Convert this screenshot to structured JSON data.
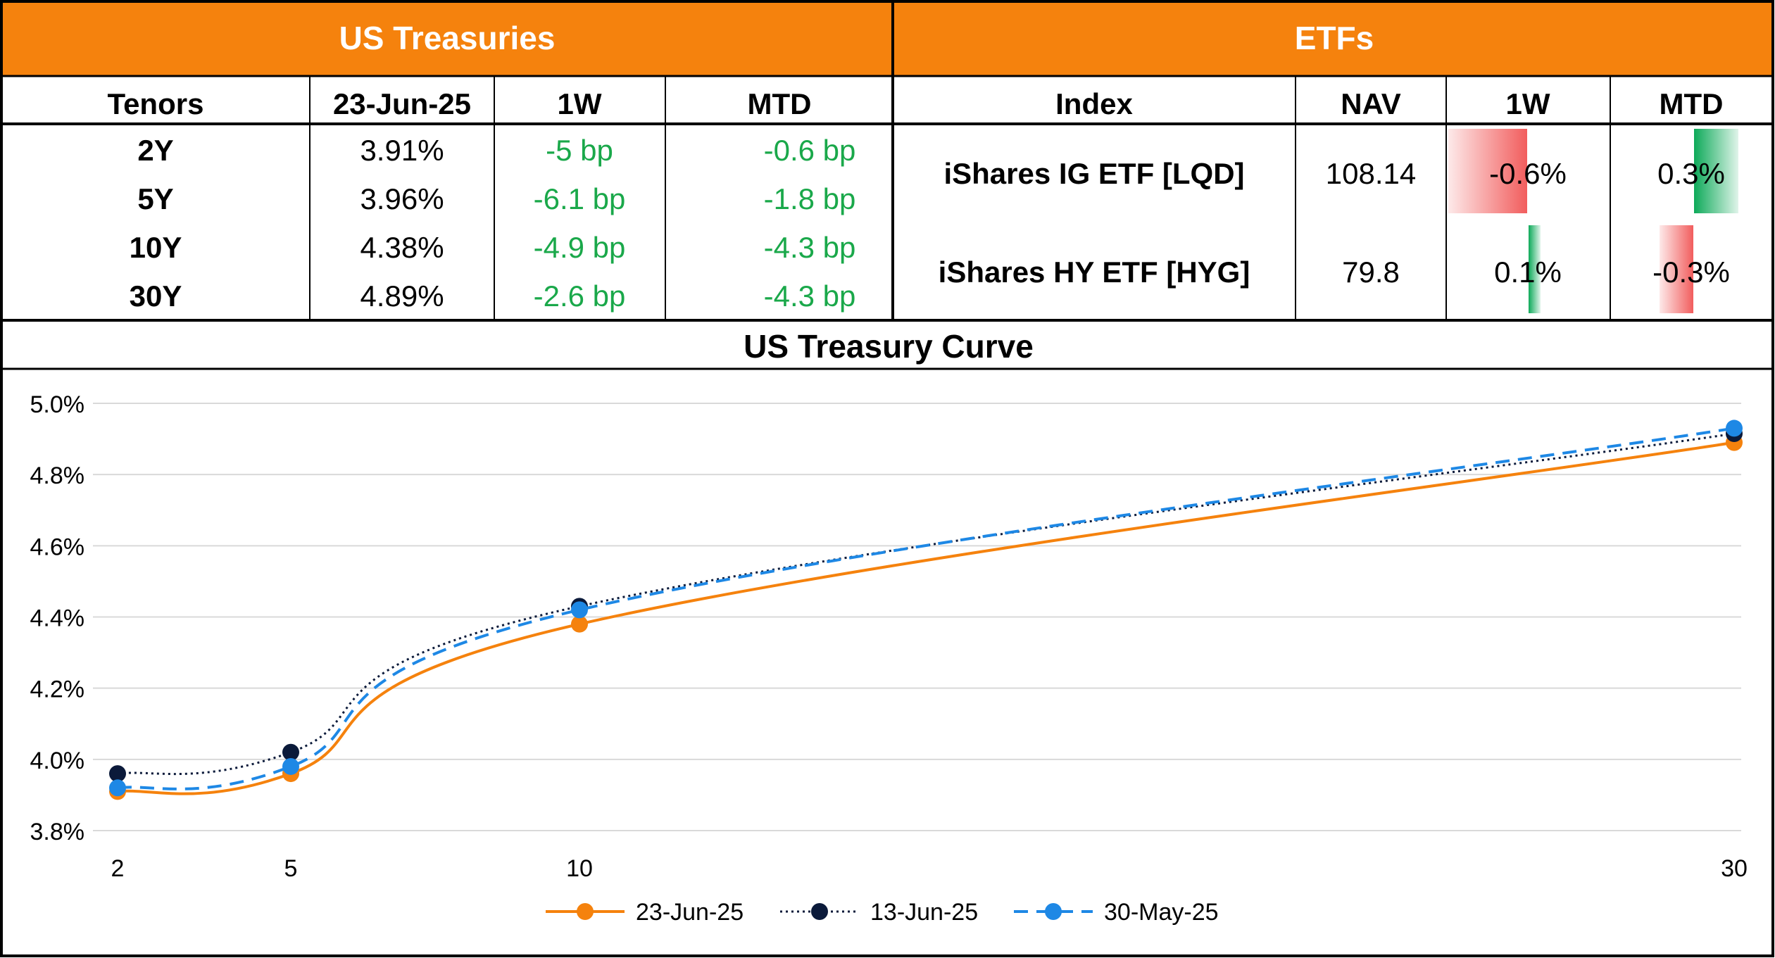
{
  "treasuries": {
    "title": "US Treasuries",
    "headers": [
      "Tenors",
      "23-Jun-25",
      "1W",
      "MTD"
    ],
    "rows": [
      {
        "tenor": "2Y",
        "yield": "3.91%",
        "w1": "-5 bp",
        "mtd": "-0.6 bp"
      },
      {
        "tenor": "5Y",
        "yield": "3.96%",
        "w1": "-6.1 bp",
        "mtd": "-1.8 bp"
      },
      {
        "tenor": "10Y",
        "yield": "4.38%",
        "w1": "-4.9 bp",
        "mtd": "-4.3 bp"
      },
      {
        "tenor": "30Y",
        "yield": "4.89%",
        "w1": "-2.6 bp",
        "mtd": "-4.3 bp"
      }
    ]
  },
  "etfs": {
    "title": "ETFs",
    "headers": [
      "Index",
      "NAV",
      "1W",
      "MTD"
    ],
    "rows": [
      {
        "index": "iShares IG ETF [LQD]",
        "nav": "108.14",
        "w1": "-0.6%",
        "w1_value": -0.6,
        "mtd": "0.3%",
        "mtd_value": 0.3
      },
      {
        "index": "iShares HY ETF [HYG]",
        "nav": "79.8",
        "w1": "0.1%",
        "w1_value": 0.1,
        "mtd": "-0.3%",
        "mtd_value": -0.3
      }
    ]
  },
  "colors": {
    "header_orange": "#F5820D",
    "positive_green": "#00A550",
    "negative_red": "#F04B4B",
    "bp_green": "#1AA84A",
    "series_orange": "#F5820D",
    "series_navy": "#0B1A3A",
    "series_blue": "#1E88E5"
  },
  "chart_data": {
    "type": "line",
    "title": "US Treasury Curve",
    "x": [
      2,
      5,
      10,
      30
    ],
    "x_ticks": [
      "2",
      "5",
      "10",
      "30"
    ],
    "ylim": [
      3.8,
      5.0
    ],
    "y_ticks": [
      "3.8%",
      "4.0%",
      "4.2%",
      "4.4%",
      "4.6%",
      "4.8%",
      "5.0%"
    ],
    "y_tick_values": [
      3.8,
      4.0,
      4.2,
      4.4,
      4.6,
      4.8,
      5.0
    ],
    "grid": true,
    "legend_position": "bottom",
    "series": [
      {
        "name": "23-Jun-25",
        "values": [
          3.91,
          3.96,
          4.38,
          4.89
        ],
        "style": "solid",
        "color": "#F5820D"
      },
      {
        "name": "13-Jun-25",
        "values": [
          3.96,
          4.02,
          4.43,
          4.915
        ],
        "style": "dotted",
        "color": "#0B1A3A"
      },
      {
        "name": "30-May-25",
        "values": [
          3.92,
          3.98,
          4.42,
          4.93
        ],
        "style": "dashed",
        "color": "#1E88E5"
      }
    ]
  }
}
